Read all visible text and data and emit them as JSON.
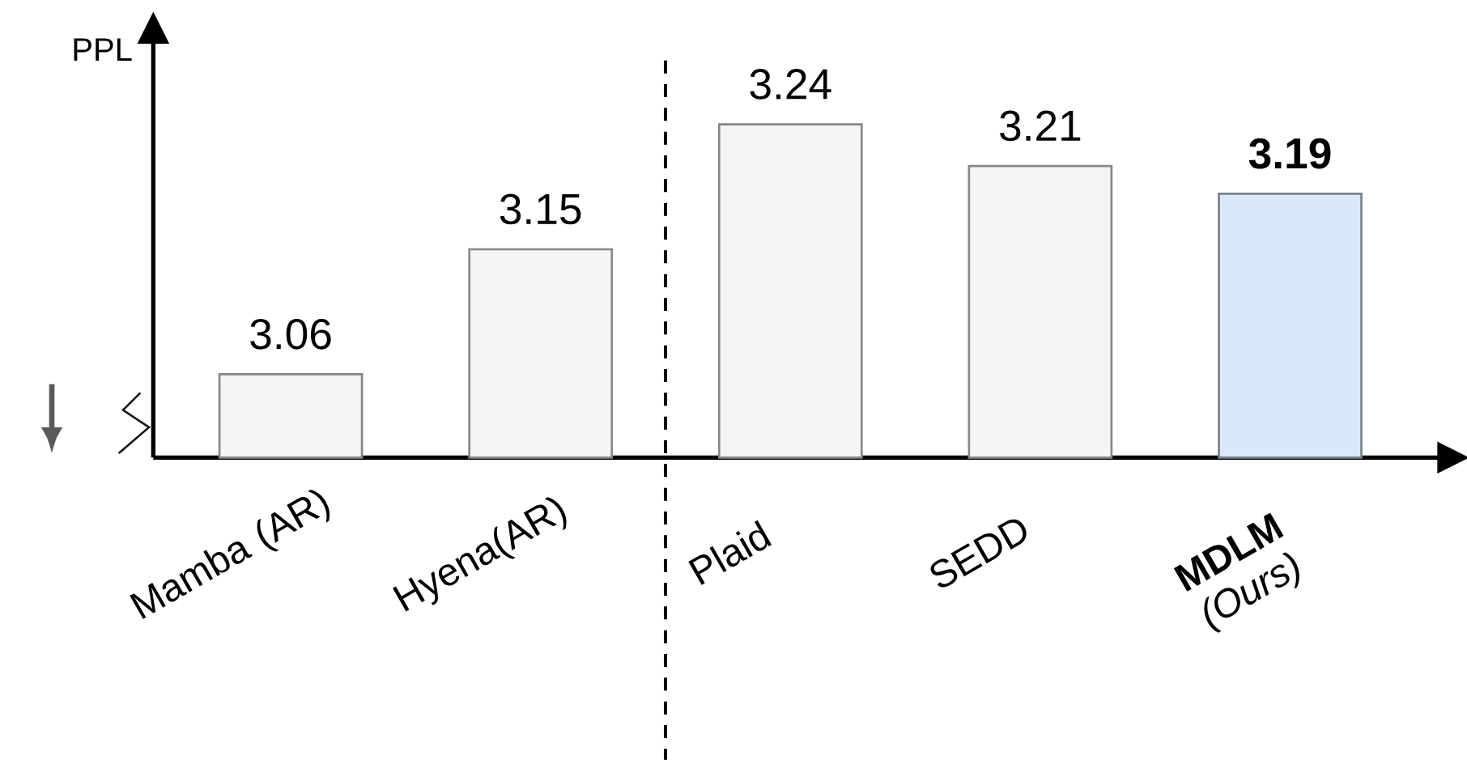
{
  "chart_data": {
    "type": "bar",
    "ylabel": "PPL",
    "categories": [
      "Mamba (AR)",
      "Hyena(AR)",
      "Plaid",
      "SEDD",
      "**MDLM** *(Ours)*"
    ],
    "values": [
      3.06,
      3.15,
      3.24,
      3.21,
      3.19
    ],
    "colors": [
      "#f5f5f5",
      "#f5f5f5",
      "#f5f5f5",
      "#f5f5f5",
      "#dae8fc"
    ],
    "value_labels": [
      "3.06",
      "3.15",
      "3.24",
      "3.21",
      "**3.19**"
    ],
    "ylim": [
      3.0,
      3.3
    ]
  }
}
